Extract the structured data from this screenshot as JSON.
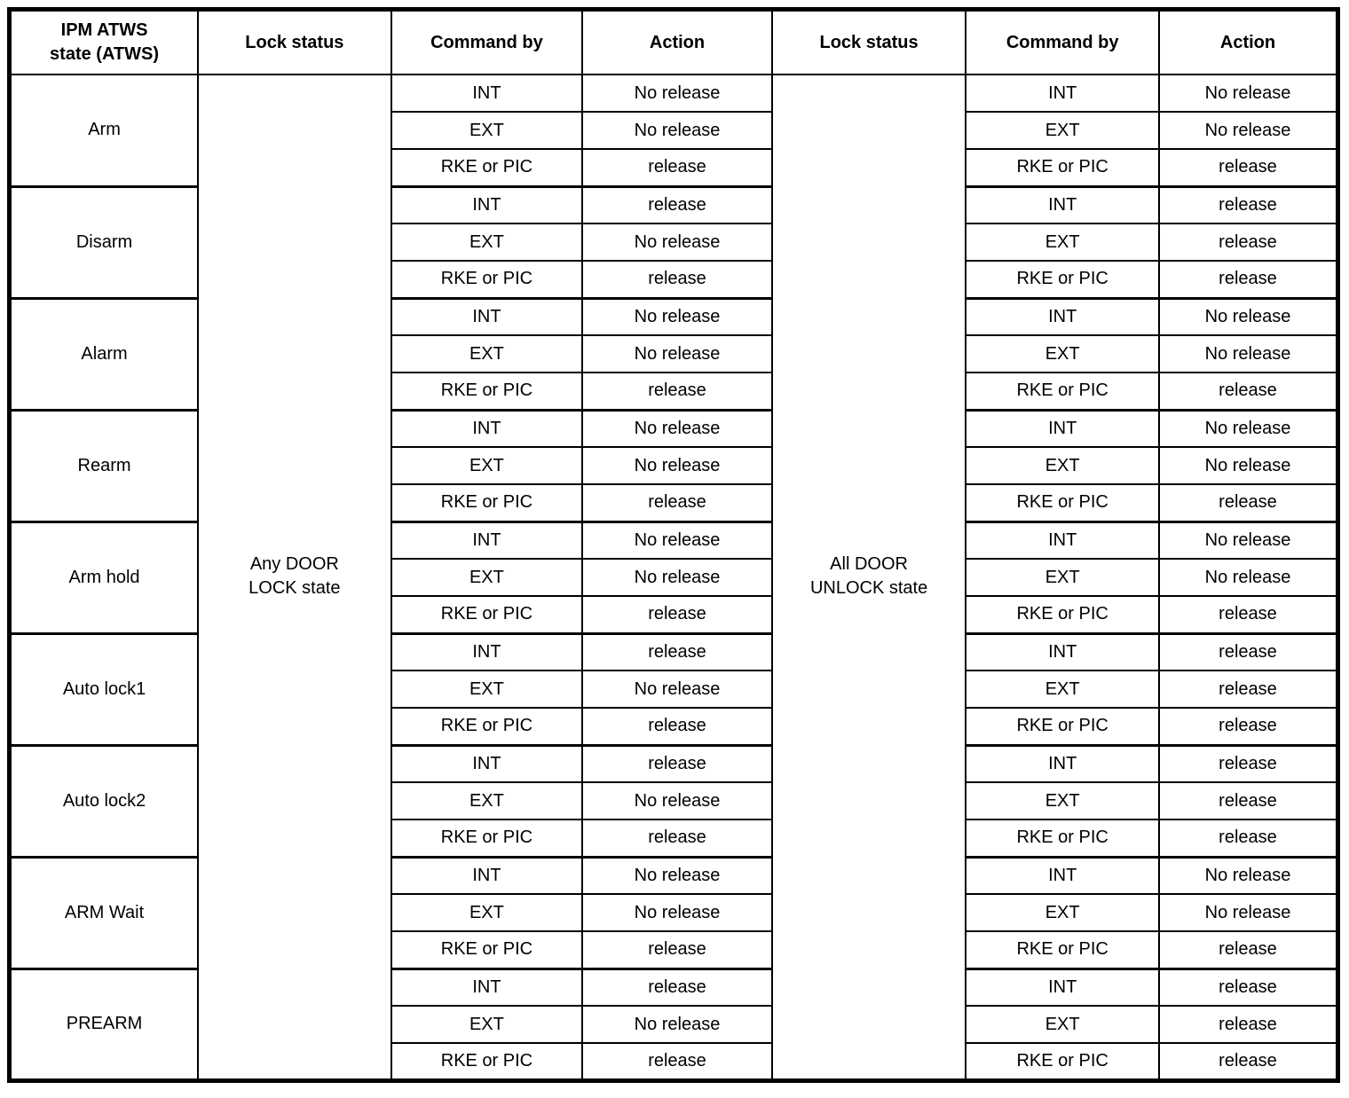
{
  "page": {
    "background_color": "#ffffff",
    "line_color": "#000000"
  },
  "table": {
    "headers": [
      "IPM ATWS\nstate (ATWS)",
      "Lock status",
      "Command by",
      "Action",
      "Lock status",
      "Command by",
      "Action"
    ],
    "left_lock_status": "Any DOOR\nLOCK state",
    "right_lock_status": "All DOOR\nUNLOCK state",
    "groups": [
      {
        "state": "Arm",
        "rows": [
          {
            "command": "INT",
            "left_action": "No release",
            "right_action": "No release"
          },
          {
            "command": "EXT",
            "left_action": "No release",
            "right_action": "No release"
          },
          {
            "command": "RKE or PIC",
            "left_action": "release",
            "right_action": "release"
          }
        ]
      },
      {
        "state": "Disarm",
        "rows": [
          {
            "command": "INT",
            "left_action": "release",
            "right_action": "release"
          },
          {
            "command": "EXT",
            "left_action": "No release",
            "right_action": "release"
          },
          {
            "command": "RKE or PIC",
            "left_action": "release",
            "right_action": "release"
          }
        ]
      },
      {
        "state": "Alarm",
        "rows": [
          {
            "command": "INT",
            "left_action": "No release",
            "right_action": "No release"
          },
          {
            "command": "EXT",
            "left_action": "No release",
            "right_action": "No release"
          },
          {
            "command": "RKE or PIC",
            "left_action": "release",
            "right_action": "release"
          }
        ]
      },
      {
        "state": "Rearm",
        "rows": [
          {
            "command": "INT",
            "left_action": "No release",
            "right_action": "No release"
          },
          {
            "command": "EXT",
            "left_action": "No release",
            "right_action": "No release"
          },
          {
            "command": "RKE or PIC",
            "left_action": "release",
            "right_action": "release"
          }
        ]
      },
      {
        "state": "Arm hold",
        "rows": [
          {
            "command": "INT",
            "left_action": "No release",
            "right_action": "No release"
          },
          {
            "command": "EXT",
            "left_action": "No release",
            "right_action": "No release"
          },
          {
            "command": "RKE or PIC",
            "left_action": "release",
            "right_action": "release"
          }
        ]
      },
      {
        "state": "Auto lock1",
        "rows": [
          {
            "command": "INT",
            "left_action": "release",
            "right_action": "release"
          },
          {
            "command": "EXT",
            "left_action": "No release",
            "right_action": "release"
          },
          {
            "command": "RKE or PIC",
            "left_action": "release",
            "right_action": "release"
          }
        ]
      },
      {
        "state": "Auto lock2",
        "rows": [
          {
            "command": "INT",
            "left_action": "release",
            "right_action": "release"
          },
          {
            "command": "EXT",
            "left_action": "No release",
            "right_action": "release"
          },
          {
            "command": "RKE or PIC",
            "left_action": "release",
            "right_action": "release"
          }
        ]
      },
      {
        "state": "ARM Wait",
        "rows": [
          {
            "command": "INT",
            "left_action": "No release",
            "right_action": "No release"
          },
          {
            "command": "EXT",
            "left_action": "No release",
            "right_action": "No release"
          },
          {
            "command": "RKE or PIC",
            "left_action": "release",
            "right_action": "release"
          }
        ]
      },
      {
        "state": "PREARM",
        "rows": [
          {
            "command": "INT",
            "left_action": "release",
            "right_action": "release"
          },
          {
            "command": "EXT",
            "left_action": "No release",
            "right_action": "release"
          },
          {
            "command": "RKE or PIC",
            "left_action": "release",
            "right_action": "release"
          }
        ]
      }
    ]
  }
}
